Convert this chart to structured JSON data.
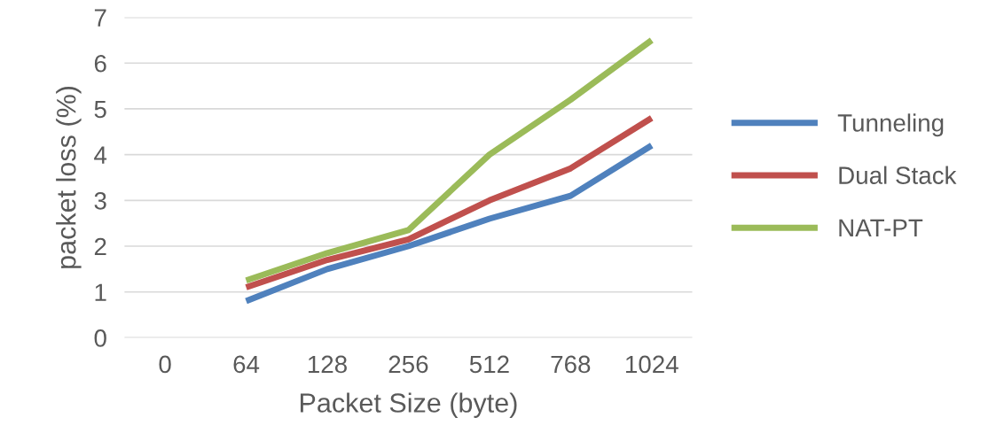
{
  "chart_data": {
    "type": "line",
    "xlabel": "Packet Size (byte)",
    "ylabel": "packet loss (%)",
    "categories": [
      "0",
      "64",
      "128",
      "256",
      "512",
      "768",
      "1024"
    ],
    "series": [
      {
        "name": "Tunneling",
        "color": "#4f81bd",
        "values": [
          null,
          0.8,
          1.5,
          2.0,
          2.6,
          3.1,
          4.2
        ]
      },
      {
        "name": "Dual Stack",
        "color": "#c0504d",
        "values": [
          null,
          1.1,
          1.7,
          2.15,
          3.0,
          3.7,
          4.8
        ]
      },
      {
        "name": "NAT-PT",
        "color": "#9bbb59",
        "values": [
          null,
          1.25,
          1.85,
          2.35,
          4.0,
          5.2,
          6.5
        ]
      }
    ],
    "ylim": [
      0,
      7
    ],
    "yticks": [
      0,
      1,
      2,
      3,
      4,
      5,
      6,
      7
    ],
    "grid": "y",
    "legend": "right",
    "marker": "none",
    "line_style": "solid"
  }
}
